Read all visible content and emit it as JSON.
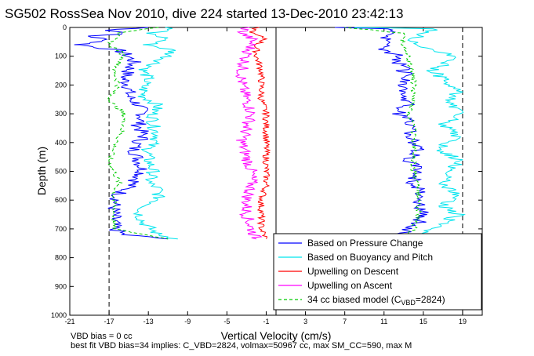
{
  "chart_data": {
    "type": "line",
    "title": "SG502 RossSea Nov 2010, dive 224 started 13-Dec-2010 23:42:13",
    "xlabel": "Vertical Velocity (cm/s)",
    "ylabel": "Depth (m)",
    "xlim": [
      -21,
      21
    ],
    "ylim": [
      1000,
      0
    ],
    "y_reversed": true,
    "grid": false,
    "legend_position": "bottom-right",
    "x_ticks": [
      "-21",
      "-17",
      "-13",
      "-9",
      "-5",
      "-1",
      "3",
      "7",
      "11",
      "15",
      "19"
    ],
    "y_ticks": [
      "0",
      "100",
      "200",
      "300",
      "400",
      "500",
      "600",
      "700",
      "800",
      "900",
      "1000"
    ],
    "reference_lines_x": [
      -17,
      19
    ],
    "divider_x": 0,
    "series": [
      {
        "name": "Based on Pressure Change",
        "color": "#0000ff",
        "style": "solid",
        "depth": [
          0,
          10,
          20,
          30,
          45,
          60,
          70,
          80,
          100,
          120,
          150,
          180,
          200,
          240,
          270,
          300,
          340,
          380,
          420,
          460,
          500,
          540,
          580,
          620,
          660,
          700,
          720,
          735
        ],
        "velocity": [
          -13,
          -17,
          -15,
          -19,
          -17,
          -20,
          -18,
          -16,
          -15,
          -14.5,
          -15,
          -15.5,
          -15,
          -15,
          -14,
          -13.5,
          -14,
          -13.5,
          -14.5,
          -14,
          -13.5,
          -14.5,
          -16,
          -16.5,
          -16.5,
          -16.5,
          -15.5,
          -11
        ],
        "ascent_depth": [
          735,
          710,
          680,
          650,
          620,
          580,
          540,
          500,
          460,
          420,
          380,
          340,
          300,
          260,
          220,
          180,
          150,
          120,
          100,
          80,
          60,
          40,
          20,
          5,
          0
        ],
        "ascent_velocity": [
          11,
          13,
          14.5,
          15,
          14.5,
          15,
          14,
          14.5,
          13.5,
          14.5,
          13.5,
          14,
          12.5,
          13.5,
          13,
          13.5,
          13,
          12.5,
          12.5,
          11,
          12,
          11,
          12.5,
          12,
          6
        ]
      },
      {
        "name": "Based on Buoyancy and Pitch",
        "color": "#00e5ee",
        "style": "solid",
        "depth": [
          0,
          10,
          20,
          40,
          60,
          80,
          100,
          120,
          150,
          180,
          200,
          240,
          270,
          300,
          340,
          380,
          420,
          460,
          500,
          540,
          560,
          600,
          640,
          680,
          720,
          735
        ],
        "velocity": [
          -11,
          -11,
          -13,
          -11,
          -13,
          -10.5,
          -11,
          -12,
          -13.5,
          -13,
          -13.5,
          -13.5,
          -12,
          -12.5,
          -12.5,
          -12,
          -13,
          -13,
          -12.5,
          -13,
          -12,
          -12,
          -14,
          -13.5,
          -12,
          -10
        ],
        "ascent_depth": [
          735,
          710,
          680,
          650,
          620,
          580,
          540,
          500,
          460,
          420,
          380,
          340,
          300,
          260,
          220,
          180,
          150,
          120,
          100,
          80,
          60,
          40,
          20,
          5,
          0
        ],
        "ascent_velocity": [
          13,
          15,
          17,
          18.5,
          17,
          18.5,
          17,
          18,
          18.5,
          16.5,
          18.5,
          17,
          19,
          17.5,
          18.5,
          17,
          16,
          17.5,
          18.5,
          16,
          14.5,
          14,
          15,
          16,
          8
        ]
      },
      {
        "name": "Upwelling on Descent",
        "color": "#ff0000",
        "style": "solid",
        "depth": [
          0,
          20,
          40,
          60,
          100,
          150,
          200,
          250,
          300,
          350,
          400,
          450,
          500,
          550,
          600,
          650,
          700,
          735
        ],
        "velocity": [
          -2,
          -2.5,
          -1,
          -2,
          -2,
          -1.5,
          -1.5,
          -1.5,
          -1,
          -1,
          -1,
          -1,
          -1,
          -1,
          -1.5,
          -1.5,
          -1.5,
          -1
        ]
      },
      {
        "name": "Upwelling on Ascent",
        "color": "#ff00ff",
        "style": "solid",
        "depth": [
          0,
          20,
          40,
          60,
          100,
          150,
          200,
          250,
          300,
          350,
          400,
          450,
          500,
          550,
          600,
          650,
          700,
          735
        ],
        "velocity": [
          -3,
          -3.5,
          -2.5,
          -2.5,
          -3,
          -3.5,
          -3.5,
          -3,
          -2.5,
          -3,
          -3.5,
          -3,
          -2.5,
          -2.5,
          -3,
          -3,
          -2.5,
          -2
        ]
      },
      {
        "name": "34 cc biased model (C_VBD=2824)",
        "color": "#00cc00",
        "style": "dashed",
        "depth": [
          0,
          10,
          20,
          40,
          60,
          80,
          100,
          150,
          200,
          240,
          270,
          300,
          340,
          380,
          420,
          460,
          500,
          540,
          580,
          620,
          660,
          700,
          735
        ],
        "velocity": [
          -12,
          -14,
          -16,
          -16.5,
          -17,
          -16,
          -15.5,
          -16.5,
          -16,
          -17,
          -16.5,
          -15.5,
          -15.5,
          -16,
          -16.5,
          -17,
          -16.5,
          -16,
          -16.5,
          -16.5,
          -16.5,
          -16.5,
          -11
        ],
        "ascent_depth": [
          735,
          700,
          660,
          620,
          580,
          540,
          500,
          460,
          420,
          380,
          340,
          300,
          260,
          220,
          180,
          150,
          120,
          100,
          80,
          60,
          40,
          20,
          0
        ],
        "ascent_velocity": [
          13,
          14,
          14.5,
          14.5,
          14.5,
          14.5,
          14,
          14,
          14,
          14,
          14,
          13.5,
          14,
          14,
          14,
          14,
          13.5,
          13.5,
          13,
          13,
          13,
          13,
          7
        ]
      }
    ],
    "legend_labels": [
      "Based on Pressure Change",
      "Based on Buoyancy and Pitch",
      "Upwelling on Descent",
      "Upwelling on Ascent",
      "34 cc biased model (C"
    ],
    "legend_sub": "VBD",
    "legend_tail": "=2824)",
    "footer": [
      "VBD bias = 0 cc",
      "best fit VBD bias=34 implies: C_VBD=2824, volmax=50967 cc, max SM_CC=590, max M"
    ]
  }
}
